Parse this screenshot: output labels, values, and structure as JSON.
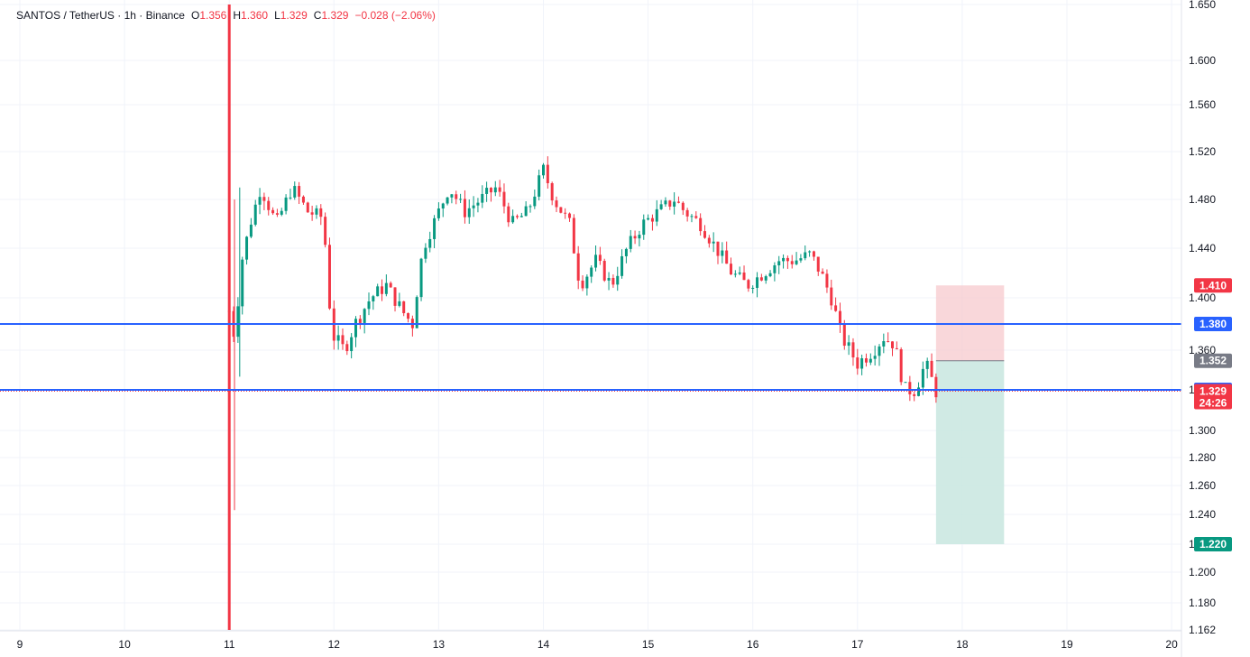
{
  "legend": {
    "symbol": "SANTOS / TetherUS · 1h · Binance",
    "open_label": "O",
    "open": "1.356",
    "high_label": "H",
    "high": "1.360",
    "low_label": "L",
    "low": "1.329",
    "close_label": "C",
    "close": "1.329",
    "change": "−0.028 (−2.06%)"
  },
  "colors": {
    "up": "#089981",
    "down": "#f23645",
    "hline": "#2962ff",
    "stop_zone": "#f7c9ce",
    "target_zone": "#c8e6df",
    "grid": "#f0f3fa"
  },
  "chart_data": {
    "type": "candlestick",
    "x_ticks": [
      "9",
      "10",
      "11",
      "12",
      "13",
      "14",
      "15",
      "16",
      "17",
      "18",
      "19",
      "20"
    ],
    "y_ticks": [
      "1.162",
      "1.180",
      "1.200",
      "1.220",
      "1.240",
      "1.260",
      "1.280",
      "1.300",
      "1.330",
      "1.360",
      "1.400",
      "1.440",
      "1.480",
      "1.520",
      "1.560",
      "1.600",
      "1.650"
    ],
    "ylim": [
      1.162,
      1.65
    ],
    "grid": true,
    "horizontal_lines": [
      {
        "price": 1.38,
        "label": "1.380"
      },
      {
        "price": 1.33,
        "label": "1.330"
      }
    ],
    "position": {
      "type": "short",
      "entry": 1.352,
      "stop": 1.41,
      "target": 1.22,
      "start_day": 17.75,
      "end_day": 18.4
    },
    "price_labels": [
      {
        "label": "1.410",
        "price": 1.41,
        "color": "#f23645"
      },
      {
        "label": "1.380",
        "price": 1.38,
        "color": "#2962ff"
      },
      {
        "label": "1.352",
        "price": 1.352,
        "color": "#787b86"
      },
      {
        "label": "1.330",
        "price": 1.33,
        "color": "#2962ff"
      },
      {
        "label": "1.329",
        "price": 1.329,
        "color": "#f23645",
        "sub": "24:26"
      },
      {
        "label": "1.220",
        "price": 1.22,
        "color": "#089981"
      }
    ],
    "candle_path_days": [
      11.0,
      11.05,
      11.12,
      11.2,
      11.3,
      11.45,
      11.6,
      11.75,
      11.9,
      11.95,
      12.0,
      12.1,
      12.2,
      12.35,
      12.5,
      12.65,
      12.75,
      12.85,
      13.0,
      13.1,
      13.25,
      13.4,
      13.55,
      13.7,
      13.85,
      14.0,
      14.1,
      14.25,
      14.35,
      14.5,
      14.65,
      14.8,
      14.95,
      15.1,
      15.25,
      15.35,
      15.5,
      15.65,
      15.8,
      15.95,
      16.1,
      16.25,
      16.4,
      16.55,
      16.65,
      16.75,
      16.85,
      17.0,
      17.15,
      17.25,
      17.35,
      17.45,
      17.55,
      17.65,
      17.75
    ],
    "candle_path_prices": [
      1.39,
      1.37,
      1.43,
      1.46,
      1.49,
      1.46,
      1.49,
      1.47,
      1.465,
      1.4,
      1.37,
      1.36,
      1.38,
      1.4,
      1.41,
      1.39,
      1.38,
      1.44,
      1.47,
      1.49,
      1.47,
      1.48,
      1.49,
      1.46,
      1.47,
      1.505,
      1.48,
      1.46,
      1.41,
      1.43,
      1.41,
      1.44,
      1.46,
      1.47,
      1.48,
      1.47,
      1.46,
      1.44,
      1.42,
      1.41,
      1.42,
      1.43,
      1.43,
      1.435,
      1.42,
      1.4,
      1.37,
      1.35,
      1.36,
      1.37,
      1.365,
      1.33,
      1.33,
      1.35,
      1.329
    ],
    "spike_wicks": [
      {
        "day": 11.0,
        "high": 1.65,
        "low": 1.162
      },
      {
        "day": 11.05,
        "high": 1.48,
        "low": 1.243
      },
      {
        "day": 11.1,
        "high": 1.49,
        "low": 1.34
      }
    ]
  }
}
